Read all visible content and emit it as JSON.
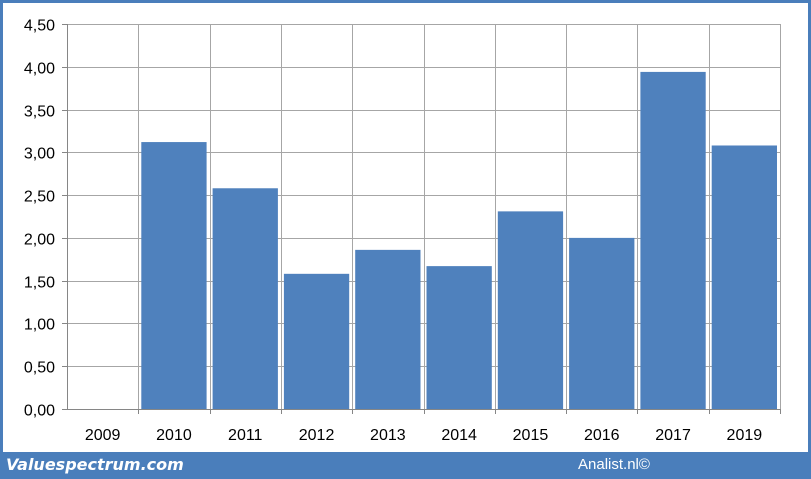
{
  "colors": {
    "bar": "#4f81bd",
    "frame": "#4a7ebb",
    "grid": "#a6a6a6",
    "plot_background": "#ffffff"
  },
  "footer": {
    "left_text": "Valuespectrum.com",
    "right_text": "Analist.nl©"
  },
  "chart_data": {
    "type": "bar",
    "title": "",
    "xlabel": "",
    "ylabel": "",
    "categories": [
      "2009",
      "2010",
      "2011",
      "2012",
      "2013",
      "2014",
      "2015",
      "2016",
      "2017",
      "2019"
    ],
    "values": [
      null,
      3.12,
      2.58,
      1.58,
      1.86,
      1.67,
      2.31,
      2.0,
      3.94,
      3.08
    ],
    "ylim": [
      0,
      4.5
    ],
    "yticks": [
      0,
      0.5,
      1.0,
      1.5,
      2.0,
      2.5,
      3.0,
      3.5,
      4.0,
      4.5
    ],
    "ytick_labels": [
      "0,00",
      "0,50",
      "1,00",
      "1,50",
      "2,00",
      "2,50",
      "3,00",
      "3,50",
      "4,00",
      "4,50"
    ],
    "grid": true,
    "legend": "none"
  }
}
